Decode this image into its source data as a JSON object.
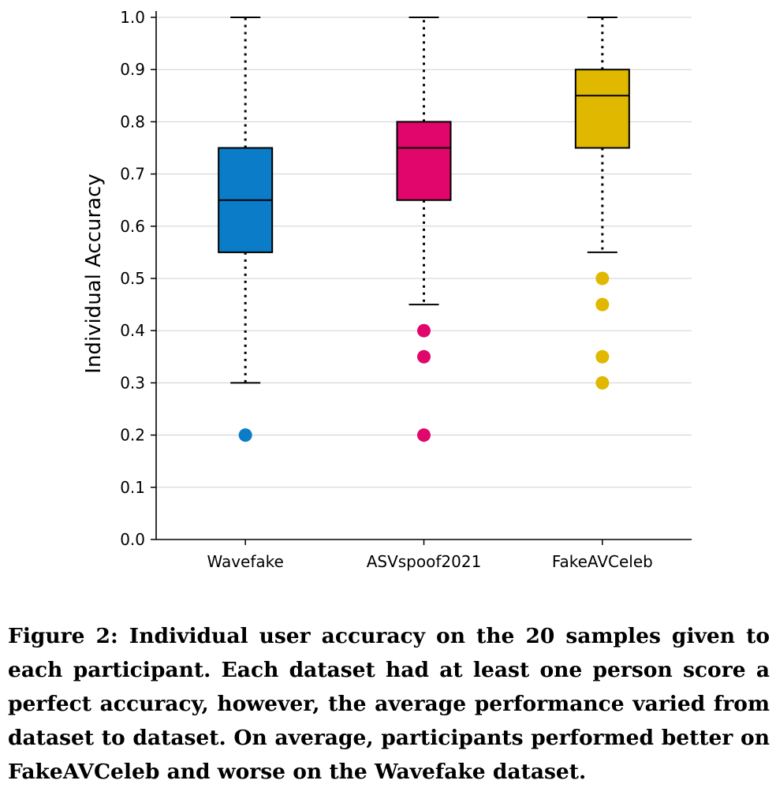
{
  "chart_data": {
    "type": "box",
    "categories": [
      "Wavefake",
      "ASVspoof2021",
      "FakeAVCeleb"
    ],
    "ylabel": "Individual Accuracy",
    "xlabel": "",
    "ylim": [
      0.0,
      1.0
    ],
    "yticks": [
      "0.0",
      "0.1",
      "0.2",
      "0.3",
      "0.4",
      "0.5",
      "0.6",
      "0.7",
      "0.8",
      "0.9",
      "1.0"
    ],
    "grid": "horizontal",
    "boxes": [
      {
        "category": "Wavefake",
        "color": "#0a7cc8",
        "whisker_low": 0.3,
        "q1": 0.55,
        "median": 0.65,
        "q3": 0.75,
        "whisker_high": 1.0,
        "outliers": [
          0.2
        ]
      },
      {
        "category": "ASVspoof2021",
        "color": "#e0066b",
        "whisker_low": 0.45,
        "q1": 0.65,
        "median": 0.75,
        "q3": 0.8,
        "whisker_high": 1.0,
        "outliers": [
          0.4,
          0.35,
          0.2
        ]
      },
      {
        "category": "FakeAVCeleb",
        "color": "#e0b800",
        "whisker_low": 0.55,
        "q1": 0.75,
        "median": 0.85,
        "q3": 0.9,
        "whisker_high": 1.0,
        "outliers": [
          0.5,
          0.45,
          0.35,
          0.3
        ]
      }
    ]
  },
  "caption": "Figure 2: Individual user accuracy on the 20 samples given to each participant. Each dataset had at least one person score a perfect accuracy, however, the average performance varied from dataset to dataset. On average, participants performed better on FakeAVCeleb and worse on the Wavefake dataset."
}
